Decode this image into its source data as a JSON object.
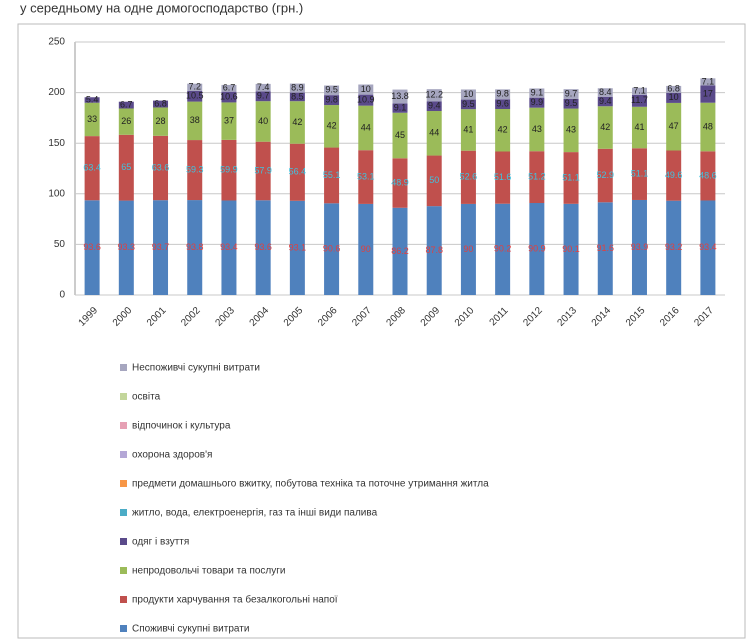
{
  "chart_data": {
    "type": "stacked_bar",
    "title": "у середньому на одне домогосподарство (грн.)",
    "categories": [
      "1999",
      "2000",
      "2001",
      "2002",
      "2003",
      "2004",
      "2005",
      "2006",
      "2007",
      "2008",
      "2009",
      "2010",
      "2011",
      "2012",
      "2013",
      "2014",
      "2015",
      "2016",
      "2017"
    ],
    "series": [
      {
        "name": "Споживчі сукупні витрати",
        "color": "#4f81bd",
        "values": [
          93.6,
          93.3,
          93.7,
          93.8,
          93.4,
          93.6,
          93.1,
          90.6,
          90,
          86.2,
          87.8,
          90,
          90.2,
          90.9,
          90.1,
          91.6,
          93.9,
          93.2,
          93.4
        ]
      },
      {
        "name": "продукти харчування та безалкогольні напої",
        "color": "#c0504d",
        "values": [
          63.4,
          65,
          63.6,
          59.3,
          59.9,
          57.9,
          56.4,
          55.1,
          53.1,
          48.9,
          50,
          52.6,
          51.6,
          51.2,
          51.1,
          52.9,
          51.1,
          49.6,
          48.6
        ]
      },
      {
        "name": "непродовольчі товари та послуги",
        "color": "#9bbb59",
        "values": [
          33,
          26,
          28,
          38,
          37,
          40,
          42,
          42,
          44,
          45,
          44,
          41,
          42,
          43,
          43,
          42,
          41,
          47,
          48
        ]
      },
      {
        "name": "одяг і взуття",
        "color": "#5a4a8a",
        "values": [
          5.4,
          6.7,
          6.8,
          10.5,
          10.6,
          9.7,
          8.5,
          9.8,
          10.9,
          9.1,
          9.4,
          9.5,
          9.6,
          9.9,
          9.5,
          9.4,
          11.7,
          10,
          17
        ]
      },
      {
        "name": "житло, вода, електроенергія,  газ та інші види палива",
        "color": "#4bacc6",
        "values": [
          null,
          null,
          null,
          null,
          null,
          null,
          null,
          null,
          null,
          null,
          null,
          null,
          null,
          null,
          null,
          null,
          null,
          null,
          null
        ]
      },
      {
        "name": "предмети  домашнього вжитку, побутова техніка та поточне утримання житла",
        "color": "#f79646",
        "values": [
          null,
          null,
          null,
          null,
          null,
          null,
          null,
          null,
          null,
          null,
          null,
          null,
          null,
          null,
          null,
          null,
          null,
          null,
          null
        ]
      },
      {
        "name": "охорона здоров'я",
        "color": "#b4a7d6",
        "values": [
          null,
          null,
          null,
          null,
          null,
          null,
          null,
          null,
          null,
          null,
          null,
          null,
          null,
          null,
          null,
          null,
          null,
          null,
          null
        ]
      },
      {
        "name": "відпочинок і культура",
        "color": "#e6a0b4",
        "values": [
          null,
          null,
          null,
          null,
          null,
          null,
          null,
          null,
          null,
          null,
          null,
          null,
          null,
          null,
          null,
          null,
          null,
          null,
          null
        ]
      },
      {
        "name": "освіта",
        "color": "#c3d69b",
        "values": [
          null,
          null,
          null,
          null,
          null,
          null,
          null,
          null,
          null,
          null,
          null,
          null,
          null,
          null,
          null,
          null,
          null,
          null,
          null
        ]
      },
      {
        "name": "Неспоживчі сукупні витрати",
        "color": "#a6a6bf",
        "values": [
          null,
          null,
          null,
          7.2,
          6.7,
          7.4,
          8.9,
          9.5,
          10,
          13.8,
          12.2,
          10,
          9.8,
          9.1,
          9.7,
          8.4,
          7.1,
          6.8,
          7.1
        ]
      }
    ],
    "ylim": [
      0,
      250
    ],
    "yticks": [
      0,
      50,
      100,
      150,
      200,
      250
    ],
    "grid": true
  }
}
